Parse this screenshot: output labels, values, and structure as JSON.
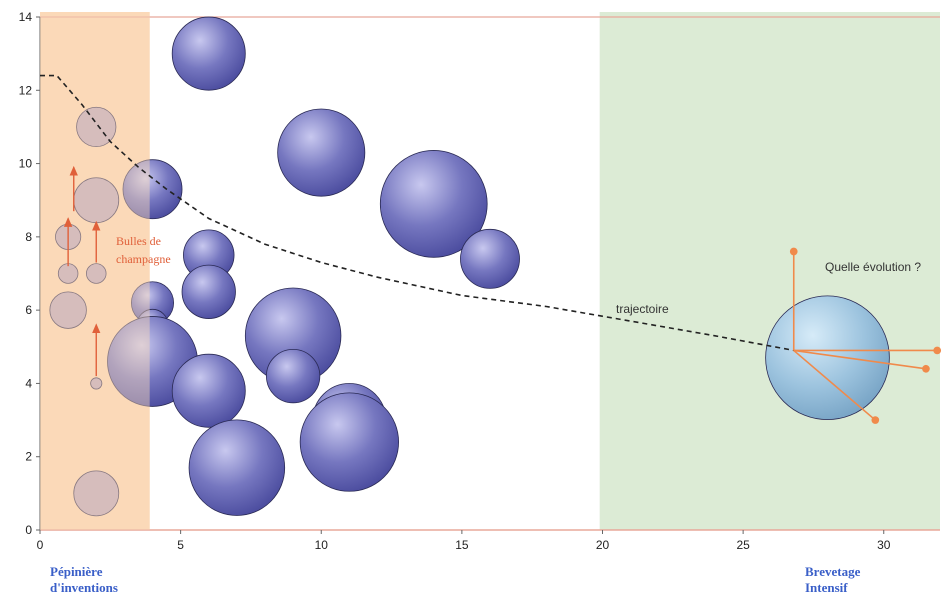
{
  "chart_data": {
    "type": "scatter",
    "title": "",
    "xlabel": "",
    "ylabel": "",
    "xlim": [
      0,
      32
    ],
    "ylim": [
      0,
      14
    ],
    "x_ticks": [
      "0",
      "5",
      "10",
      "15",
      "20",
      "25",
      "30"
    ],
    "y_ticks": [
      "0",
      "2",
      "4",
      "6",
      "8",
      "10",
      "12",
      "14"
    ],
    "grid": false,
    "zones": [
      {
        "name": "Pépinière d'inventions",
        "x_from": 0,
        "x_to": 3.9,
        "color": "#fbd9b8"
      },
      {
        "name": "Brevetage Intensif",
        "x_from": 19.9,
        "x_to": 32,
        "color": "#dcebd5"
      }
    ],
    "zone_labels": [
      {
        "line1": "Pépinière",
        "line2": "d'inventions"
      },
      {
        "line1": "Brevetage",
        "line2": "Intensif"
      }
    ],
    "bubbles": [
      {
        "x": 6,
        "y": 13,
        "r": 1.3
      },
      {
        "x": 10,
        "y": 10.3,
        "r": 1.55
      },
      {
        "x": 14,
        "y": 8.9,
        "r": 1.9
      },
      {
        "x": 16,
        "y": 7.4,
        "r": 1.05
      },
      {
        "x": 4,
        "y": 9.3,
        "r": 1.05
      },
      {
        "x": 6,
        "y": 7.5,
        "r": 0.9
      },
      {
        "x": 6,
        "y": 6.5,
        "r": 0.95
      },
      {
        "x": 4,
        "y": 6.2,
        "r": 0.75
      },
      {
        "x": 4,
        "y": 5.6,
        "r": 0.55
      },
      {
        "x": 4,
        "y": 4.6,
        "r": 1.6
      },
      {
        "x": 6,
        "y": 3.8,
        "r": 1.3
      },
      {
        "x": 9,
        "y": 5.3,
        "r": 1.7
      },
      {
        "x": 9,
        "y": 4.2,
        "r": 0.95
      },
      {
        "x": 11,
        "y": 3.0,
        "r": 1.3
      },
      {
        "x": 11,
        "y": 2.4,
        "r": 1.75
      },
      {
        "x": 7,
        "y": 1.7,
        "r": 1.7
      },
      {
        "x": 2,
        "y": 11,
        "r": 0.7
      },
      {
        "x": 2,
        "y": 9,
        "r": 0.8
      },
      {
        "x": 1,
        "y": 8,
        "r": 0.45
      },
      {
        "x": 1,
        "y": 7,
        "r": 0.35
      },
      {
        "x": 2,
        "y": 7,
        "r": 0.35
      },
      {
        "x": 1,
        "y": 6,
        "r": 0.65
      },
      {
        "x": 2,
        "y": 4,
        "r": 0.2
      },
      {
        "x": 2,
        "y": 1,
        "r": 0.8
      }
    ],
    "future_bubble": {
      "x": 28,
      "y": 4.7,
      "r": 2.2
    },
    "trajectory": [
      [
        0,
        12.4
      ],
      [
        0.6,
        12.4
      ],
      [
        1.5,
        11.6
      ],
      [
        2.5,
        10.6
      ],
      [
        3.5,
        9.9
      ],
      [
        4.5,
        9.3
      ],
      [
        6,
        8.5
      ],
      [
        8,
        7.8
      ],
      [
        10,
        7.3
      ],
      [
        12,
        6.9
      ],
      [
        15,
        6.4
      ],
      [
        18,
        6.1
      ],
      [
        21,
        5.7
      ],
      [
        24,
        5.3
      ],
      [
        26.8,
        4.9
      ]
    ],
    "evolution_arrows": [
      {
        "from": [
          26.8,
          4.9
        ],
        "to": [
          26.8,
          7.6
        ]
      },
      {
        "from": [
          26.8,
          4.9
        ],
        "to": [
          31.9,
          4.9
        ]
      },
      {
        "from": [
          26.8,
          4.9
        ],
        "to": [
          31.5,
          4.4
        ]
      },
      {
        "from": [
          26.8,
          4.9
        ],
        "to": [
          29.7,
          3.0
        ]
      }
    ],
    "champagne_arrows": [
      {
        "from": [
          1.2,
          8.7
        ],
        "to": [
          1.2,
          9.9
        ]
      },
      {
        "from": [
          1.0,
          7.2
        ],
        "to": [
          1.0,
          8.5
        ]
      },
      {
        "from": [
          2.0,
          7.3
        ],
        "to": [
          2.0,
          8.4
        ]
      },
      {
        "from": [
          2.0,
          4.2
        ],
        "to": [
          2.0,
          5.6
        ]
      }
    ],
    "annotations": {
      "champagne_line1": "Bulles de",
      "champagne_line2": "champagne",
      "trajectoire": "trajectoire",
      "evolution": "Quelle évolution ?"
    },
    "colors": {
      "bubble": "#5e5fae",
      "bubble_light": "#b9b8e6",
      "faded_bubble": "#b9a6bf",
      "future_bubble": "#9cc3de",
      "arrow": "#f08a4b",
      "axis": "#e8a89a"
    }
  }
}
